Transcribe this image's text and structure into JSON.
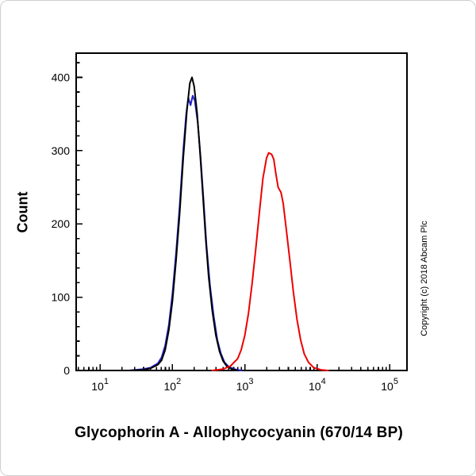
{
  "figure": {
    "x_title": "Glycophorin A - Allophycocyanin (670/14 BP)",
    "y_label": "Count",
    "copyright": "Copyright (c) 2018 Abcam Plc"
  },
  "chart_data": {
    "type": "line",
    "title": "",
    "xlabel": "Glycophorin A - Allophycocyanin (670/14 BP)",
    "ylabel": "Count",
    "x_scale": "log10",
    "xlim_log": [
      0.67,
      5.24
    ],
    "ylim": [
      0,
      433
    ],
    "grid": false,
    "legend_position": "none",
    "x_tick_base": "10",
    "x_ticks": [
      1,
      2,
      3,
      4,
      5
    ],
    "y_ticks": [
      0,
      100,
      200,
      300,
      400
    ],
    "y_minor_step": 20,
    "axis_color": "#000000",
    "series": [
      {
        "name": "negative-control-blue",
        "color": "#2222cc",
        "peak_x_log": 2.28,
        "peak_count": 375,
        "points": [
          [
            1.4,
            0
          ],
          [
            1.6,
            2
          ],
          [
            1.7,
            4
          ],
          [
            1.8,
            10
          ],
          [
            1.85,
            18
          ],
          [
            1.9,
            34
          ],
          [
            1.95,
            62
          ],
          [
            2.0,
            105
          ],
          [
            2.05,
            160
          ],
          [
            2.1,
            225
          ],
          [
            2.15,
            300
          ],
          [
            2.19,
            350
          ],
          [
            2.22,
            372
          ],
          [
            2.25,
            362
          ],
          [
            2.28,
            375
          ],
          [
            2.31,
            368
          ],
          [
            2.35,
            338
          ],
          [
            2.39,
            290
          ],
          [
            2.43,
            232
          ],
          [
            2.47,
            172
          ],
          [
            2.52,
            115
          ],
          [
            2.57,
            74
          ],
          [
            2.62,
            42
          ],
          [
            2.67,
            23
          ],
          [
            2.72,
            11
          ],
          [
            2.78,
            5
          ],
          [
            2.85,
            2
          ],
          [
            2.95,
            0
          ]
        ]
      },
      {
        "name": "negative-control-black",
        "color": "#000000",
        "peak_x_log": 2.27,
        "peak_count": 400,
        "points": [
          [
            1.4,
            0
          ],
          [
            1.6,
            1
          ],
          [
            1.7,
            3
          ],
          [
            1.8,
            8
          ],
          [
            1.85,
            14
          ],
          [
            1.9,
            28
          ],
          [
            1.95,
            55
          ],
          [
            2.0,
            95
          ],
          [
            2.05,
            150
          ],
          [
            2.1,
            215
          ],
          [
            2.15,
            290
          ],
          [
            2.2,
            355
          ],
          [
            2.24,
            392
          ],
          [
            2.27,
            400
          ],
          [
            2.3,
            388
          ],
          [
            2.34,
            352
          ],
          [
            2.38,
            300
          ],
          [
            2.42,
            240
          ],
          [
            2.46,
            180
          ],
          [
            2.5,
            128
          ],
          [
            2.55,
            82
          ],
          [
            2.6,
            48
          ],
          [
            2.65,
            26
          ],
          [
            2.7,
            13
          ],
          [
            2.75,
            6
          ],
          [
            2.82,
            2
          ],
          [
            2.9,
            0
          ]
        ]
      },
      {
        "name": "glycophorin-a-apc-red",
        "color": "#ee0000",
        "peak_x_log": 3.33,
        "peak_count": 297,
        "points": [
          [
            2.55,
            0
          ],
          [
            2.7,
            2
          ],
          [
            2.8,
            6
          ],
          [
            2.9,
            16
          ],
          [
            2.95,
            28
          ],
          [
            3.0,
            48
          ],
          [
            3.05,
            78
          ],
          [
            3.1,
            118
          ],
          [
            3.15,
            165
          ],
          [
            3.2,
            215
          ],
          [
            3.25,
            262
          ],
          [
            3.3,
            290
          ],
          [
            3.33,
            297
          ],
          [
            3.37,
            295
          ],
          [
            3.4,
            288
          ],
          [
            3.43,
            268
          ],
          [
            3.46,
            250
          ],
          [
            3.5,
            243
          ],
          [
            3.53,
            228
          ],
          [
            3.57,
            195
          ],
          [
            3.62,
            152
          ],
          [
            3.67,
            108
          ],
          [
            3.72,
            70
          ],
          [
            3.77,
            42
          ],
          [
            3.82,
            23
          ],
          [
            3.88,
            11
          ],
          [
            3.95,
            4
          ],
          [
            4.05,
            1
          ],
          [
            4.15,
            0
          ]
        ]
      }
    ]
  }
}
